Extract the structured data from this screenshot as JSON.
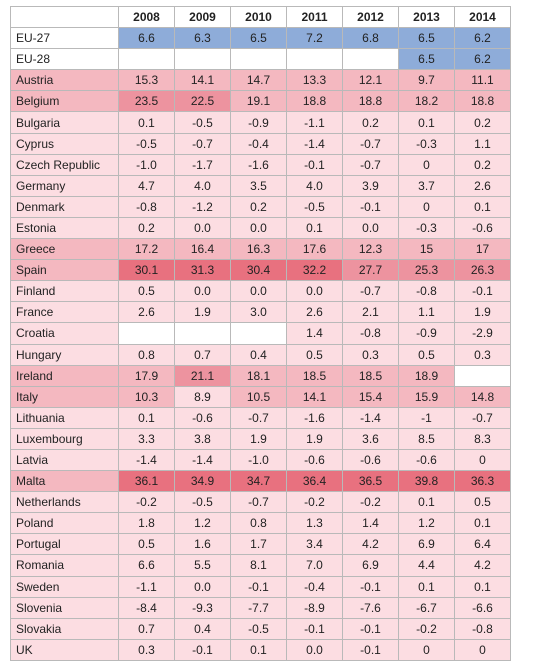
{
  "years": [
    "2008",
    "2009",
    "2010",
    "2011",
    "2012",
    "2013",
    "2014"
  ],
  "colors": {
    "blue": "#8eacd9",
    "none": "#ffffff",
    "light": "#fcdde2",
    "mid": "#f4b8c0",
    "strong": "#ed939f",
    "max": "#e8717f"
  },
  "rows": [
    {
      "name": "EU-27",
      "style": "blue",
      "values": [
        "6.6",
        "6.3",
        "6.5",
        "7.2",
        "6.8",
        "6.5",
        "6.2"
      ]
    },
    {
      "name": "EU-28",
      "style": "blue",
      "values": [
        "",
        "",
        "",
        "",
        "",
        "6.5",
        "6.2"
      ]
    },
    {
      "name": "Austria",
      "values": [
        "15.3",
        "14.1",
        "14.7",
        "13.3",
        "12.1",
        "9.7",
        "11.1"
      ]
    },
    {
      "name": "Belgium",
      "values": [
        "23.5",
        "22.5",
        "19.1",
        "18.8",
        "18.8",
        "18.2",
        "18.8"
      ]
    },
    {
      "name": "Bulgaria",
      "values": [
        "0.1",
        "-0.5",
        "-0.9",
        "-1.1",
        "0.2",
        "0.1",
        "0.2"
      ]
    },
    {
      "name": "Cyprus",
      "values": [
        "-0.5",
        "-0.7",
        "-0.4",
        "-1.4",
        "-0.7",
        "-0.3",
        "1.1"
      ]
    },
    {
      "name": "Czech Republic",
      "values": [
        "-1.0",
        "-1.7",
        "-1.6",
        "-0.1",
        "-0.7",
        "0",
        "0.2"
      ]
    },
    {
      "name": "Germany",
      "values": [
        "4.7",
        "4.0",
        "3.5",
        "4.0",
        "3.9",
        "3.7",
        "2.6"
      ]
    },
    {
      "name": "Denmark",
      "values": [
        "-0.8",
        "-1.2",
        "0.2",
        "-0.5",
        "-0.1",
        "0",
        "0.1"
      ]
    },
    {
      "name": "Estonia",
      "values": [
        "0.2",
        "0.0",
        "0.0",
        "0.1",
        "0.0",
        "-0.3",
        "-0.6"
      ]
    },
    {
      "name": "Greece",
      "values": [
        "17.2",
        "16.4",
        "16.3",
        "17.6",
        "12.3",
        "15",
        "17"
      ]
    },
    {
      "name": "Spain",
      "values": [
        "30.1",
        "31.3",
        "30.4",
        "32.2",
        "27.7",
        "25.3",
        "26.3"
      ]
    },
    {
      "name": "Finland",
      "values": [
        "0.5",
        "0.0",
        "0.0",
        "0.0",
        "-0.7",
        "-0.8",
        "-0.1"
      ]
    },
    {
      "name": "France",
      "values": [
        "2.6",
        "1.9",
        "3.0",
        "2.6",
        "2.1",
        "1.1",
        "1.9"
      ]
    },
    {
      "name": "Croatia",
      "values": [
        "",
        "",
        "",
        "1.4",
        "-0.8",
        "-0.9",
        "-2.9"
      ]
    },
    {
      "name": "Hungary",
      "values": [
        "0.8",
        "0.7",
        "0.4",
        "0.5",
        "0.3",
        "0.5",
        "0.3"
      ]
    },
    {
      "name": "Ireland",
      "values": [
        "17.9",
        "21.1",
        "18.1",
        "18.5",
        "18.5",
        "18.9",
        ""
      ]
    },
    {
      "name": "Italy",
      "values": [
        "10.3",
        "8.9",
        "10.5",
        "14.1",
        "15.4",
        "15.9",
        "14.8"
      ]
    },
    {
      "name": "Lithuania",
      "values": [
        "0.1",
        "-0.6",
        "-0.7",
        "-1.6",
        "-1.4",
        "-1",
        "-0.7"
      ]
    },
    {
      "name": "Luxembourg",
      "values": [
        "3.3",
        "3.8",
        "1.9",
        "1.9",
        "3.6",
        "8.5",
        "8.3"
      ]
    },
    {
      "name": "Latvia",
      "values": [
        "-1.4",
        "-1.4",
        "-1.0",
        "-0.6",
        "-0.6",
        "-0.6",
        "0"
      ]
    },
    {
      "name": "Malta",
      "values": [
        "36.1",
        "34.9",
        "34.7",
        "36.4",
        "36.5",
        "39.8",
        "36.3"
      ]
    },
    {
      "name": "Netherlands",
      "values": [
        "-0.2",
        "-0.5",
        "-0.7",
        "-0.2",
        "-0.2",
        "0.1",
        "0.5"
      ]
    },
    {
      "name": "Poland",
      "values": [
        "1.8",
        "1.2",
        "0.8",
        "1.3",
        "1.4",
        "1.2",
        "0.1"
      ]
    },
    {
      "name": "Portugal",
      "values": [
        "0.5",
        "1.6",
        "1.7",
        "3.4",
        "4.2",
        "6.9",
        "6.4"
      ]
    },
    {
      "name": "Romania",
      "values": [
        "6.6",
        "5.5",
        "8.1",
        "7.0",
        "6.9",
        "4.4",
        "4.2"
      ]
    },
    {
      "name": "Sweden",
      "values": [
        "-1.1",
        "0.0",
        "-0.1",
        "-0.4",
        "-0.1",
        "0.1",
        "0.1"
      ]
    },
    {
      "name": "Slovenia",
      "values": [
        "-8.4",
        "-9.3",
        "-7.7",
        "-8.9",
        "-7.6",
        "-6.7",
        "-6.6"
      ]
    },
    {
      "name": "Slovakia",
      "values": [
        "0.7",
        "0.4",
        "-0.5",
        "-0.1",
        "-0.1",
        "-0.2",
        "-0.8"
      ]
    },
    {
      "name": "UK",
      "values": [
        "0.3",
        "-0.1",
        "0.1",
        "0.0",
        "-0.1",
        "0",
        "0"
      ]
    }
  ]
}
